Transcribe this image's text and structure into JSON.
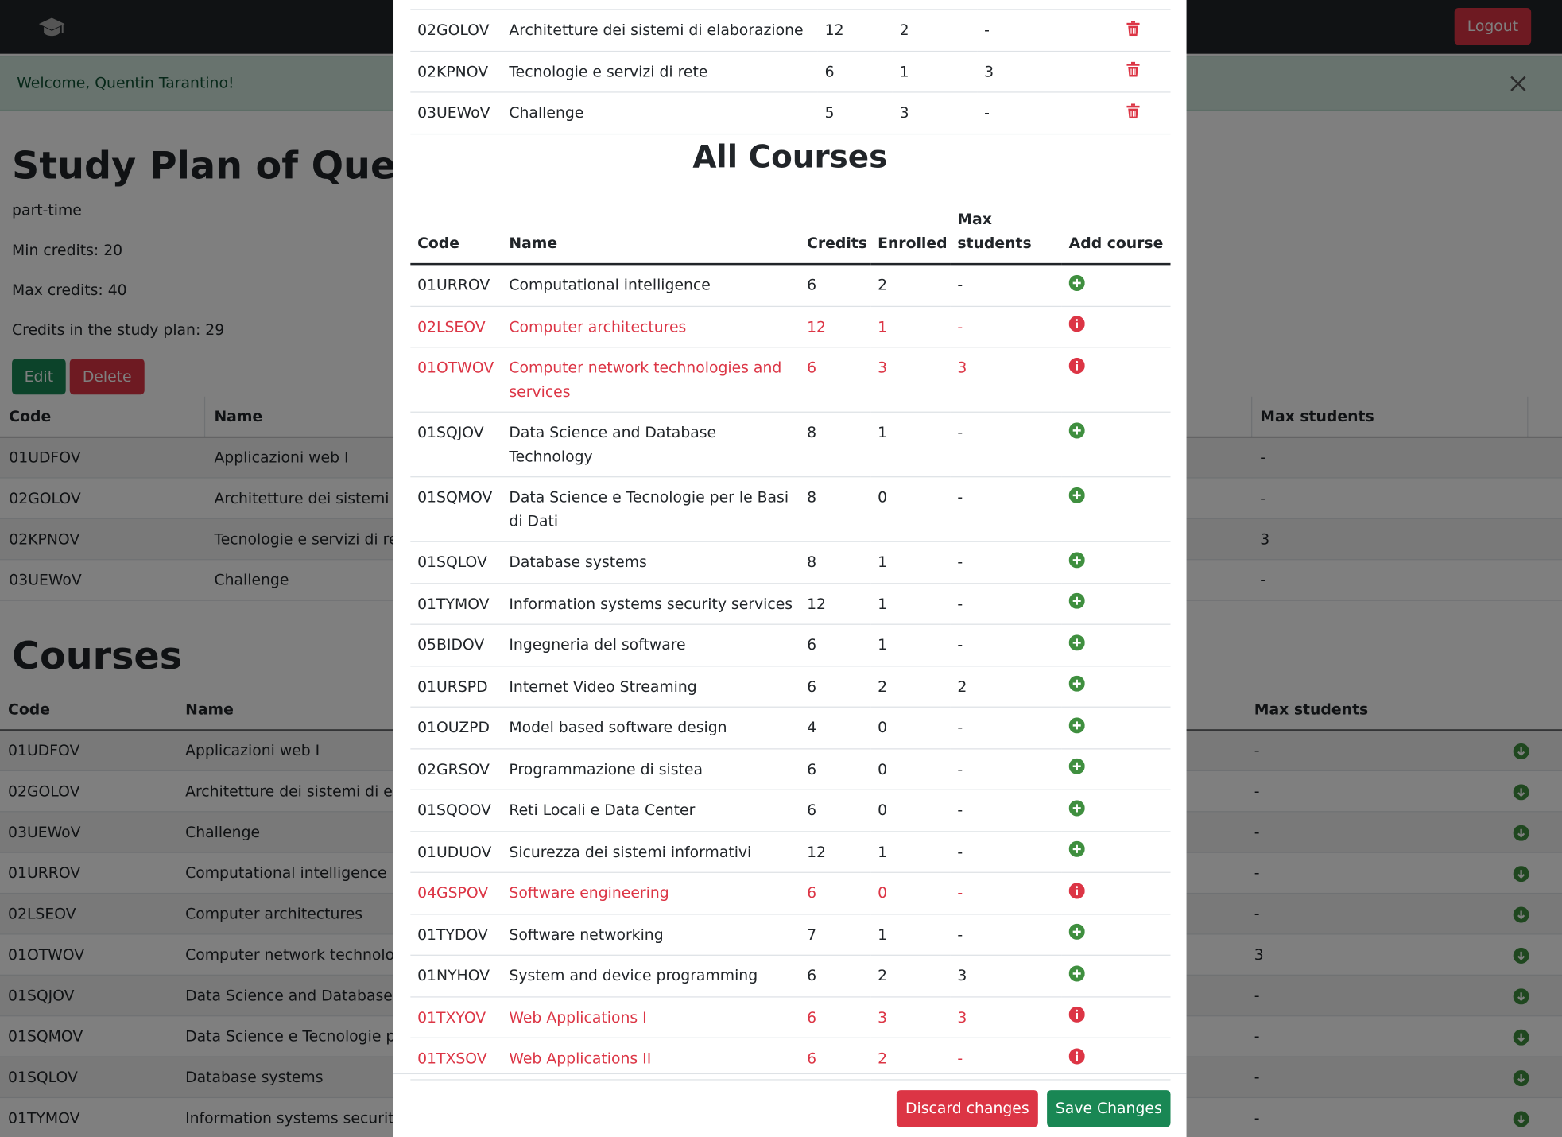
{
  "navbar": {
    "logout": "Logout"
  },
  "alert": {
    "message": "Welcome, Quentin Tarantino!"
  },
  "study_plan": {
    "title": "Study Plan of Quenti",
    "type": "part-time",
    "min_credits": "Min credits: 20",
    "max_credits": "Max credits: 40",
    "credits": "Credits in the study plan: 29",
    "edit": "Edit",
    "delete": "Delete",
    "table": {
      "headers": [
        "Code",
        "Name",
        "Max students"
      ],
      "rows": [
        [
          "01UDFOV",
          "Applicazioni web I",
          "-"
        ],
        [
          "02GOLOV",
          "Architetture dei sistemi d",
          "-"
        ],
        [
          "02KPNOV",
          "Tecnologie e servizi di ret",
          "3"
        ],
        [
          "03UEWoV",
          "Challenge",
          "-"
        ]
      ]
    }
  },
  "courses": {
    "title": "Courses",
    "table": {
      "headers": [
        "Code",
        "Name",
        "Max students"
      ],
      "rows": [
        [
          "01UDFOV",
          "Applicazioni web I",
          "-"
        ],
        [
          "02GOLOV",
          "Architetture dei sistemi di ela",
          "-"
        ],
        [
          "03UEWoV",
          "Challenge",
          "-"
        ],
        [
          "01URROV",
          "Computational intelligence",
          "-"
        ],
        [
          "02LSEOV",
          "Computer architectures",
          "-"
        ],
        [
          "01OTWOV",
          "Computer network technolog",
          "3"
        ],
        [
          "01SQJOV",
          "Data Science and Database Te",
          "-"
        ],
        [
          "01SQMOV",
          "Data Science e Tecnologie pe",
          "-"
        ],
        [
          "01SQLOV",
          "Database systems",
          "-"
        ],
        [
          "01TYMOV",
          "Information systems security",
          "-"
        ]
      ]
    }
  },
  "modal": {
    "plan_rows": [
      [
        "02GOLOV",
        "Architetture dei sistemi di elaborazione",
        "12",
        "2",
        "-"
      ],
      [
        "02KPNOV",
        "Tecnologie e servizi di rete",
        "6",
        "1",
        "3"
      ],
      [
        "03UEWoV",
        "Challenge",
        "5",
        "3",
        "-"
      ]
    ],
    "all_courses": {
      "title": "All Courses",
      "headers": [
        "Code",
        "Name",
        "Credits",
        "Enrolled",
        "Max students",
        "Add course"
      ],
      "rows": [
        {
          "cells": [
            "01URROV",
            "Computational intelligence",
            "6",
            "2",
            "-"
          ],
          "available": true
        },
        {
          "cells": [
            "02LSEOV",
            "Computer architectures",
            "12",
            "1",
            "-"
          ],
          "available": false
        },
        {
          "cells": [
            "01OTWOV",
            "Computer network technologies and services",
            "6",
            "3",
            "3"
          ],
          "available": false
        },
        {
          "cells": [
            "01SQJOV",
            "Data Science and Database Technology",
            "8",
            "1",
            "-"
          ],
          "available": true
        },
        {
          "cells": [
            "01SQMOV",
            "Data Science e Tecnologie per le Basi di Dati",
            "8",
            "0",
            "-"
          ],
          "available": true
        },
        {
          "cells": [
            "01SQLOV",
            "Database systems",
            "8",
            "1",
            "-"
          ],
          "available": true
        },
        {
          "cells": [
            "01TYMOV",
            "Information systems security services",
            "12",
            "1",
            "-"
          ],
          "available": true
        },
        {
          "cells": [
            "05BIDOV",
            "Ingegneria del software",
            "6",
            "1",
            "-"
          ],
          "available": true
        },
        {
          "cells": [
            "01URSPD",
            "Internet Video Streaming",
            "6",
            "2",
            "2"
          ],
          "available": true
        },
        {
          "cells": [
            "01OUZPD",
            "Model based software design",
            "4",
            "0",
            "-"
          ],
          "available": true
        },
        {
          "cells": [
            "02GRSOV",
            "Programmazione di sistea",
            "6",
            "0",
            "-"
          ],
          "available": true
        },
        {
          "cells": [
            "01SQOOV",
            "Reti Locali e Data Center",
            "6",
            "0",
            "-"
          ],
          "available": true
        },
        {
          "cells": [
            "01UDUOV",
            "Sicurezza dei sistemi informativi",
            "12",
            "1",
            "-"
          ],
          "available": true
        },
        {
          "cells": [
            "04GSPOV",
            "Software engineering",
            "6",
            "0",
            "-"
          ],
          "available": false
        },
        {
          "cells": [
            "01TYDOV",
            "Software networking",
            "7",
            "1",
            "-"
          ],
          "available": true
        },
        {
          "cells": [
            "01NYHOV",
            "System and device programming",
            "6",
            "2",
            "3"
          ],
          "available": true
        },
        {
          "cells": [
            "01TXYOV",
            "Web Applications I",
            "6",
            "3",
            "3"
          ],
          "available": false
        },
        {
          "cells": [
            "01TXSOV",
            "Web Applications II",
            "6",
            "2",
            "-"
          ],
          "available": false
        }
      ]
    },
    "discard": "Discard changes",
    "save": "Save Changes"
  }
}
